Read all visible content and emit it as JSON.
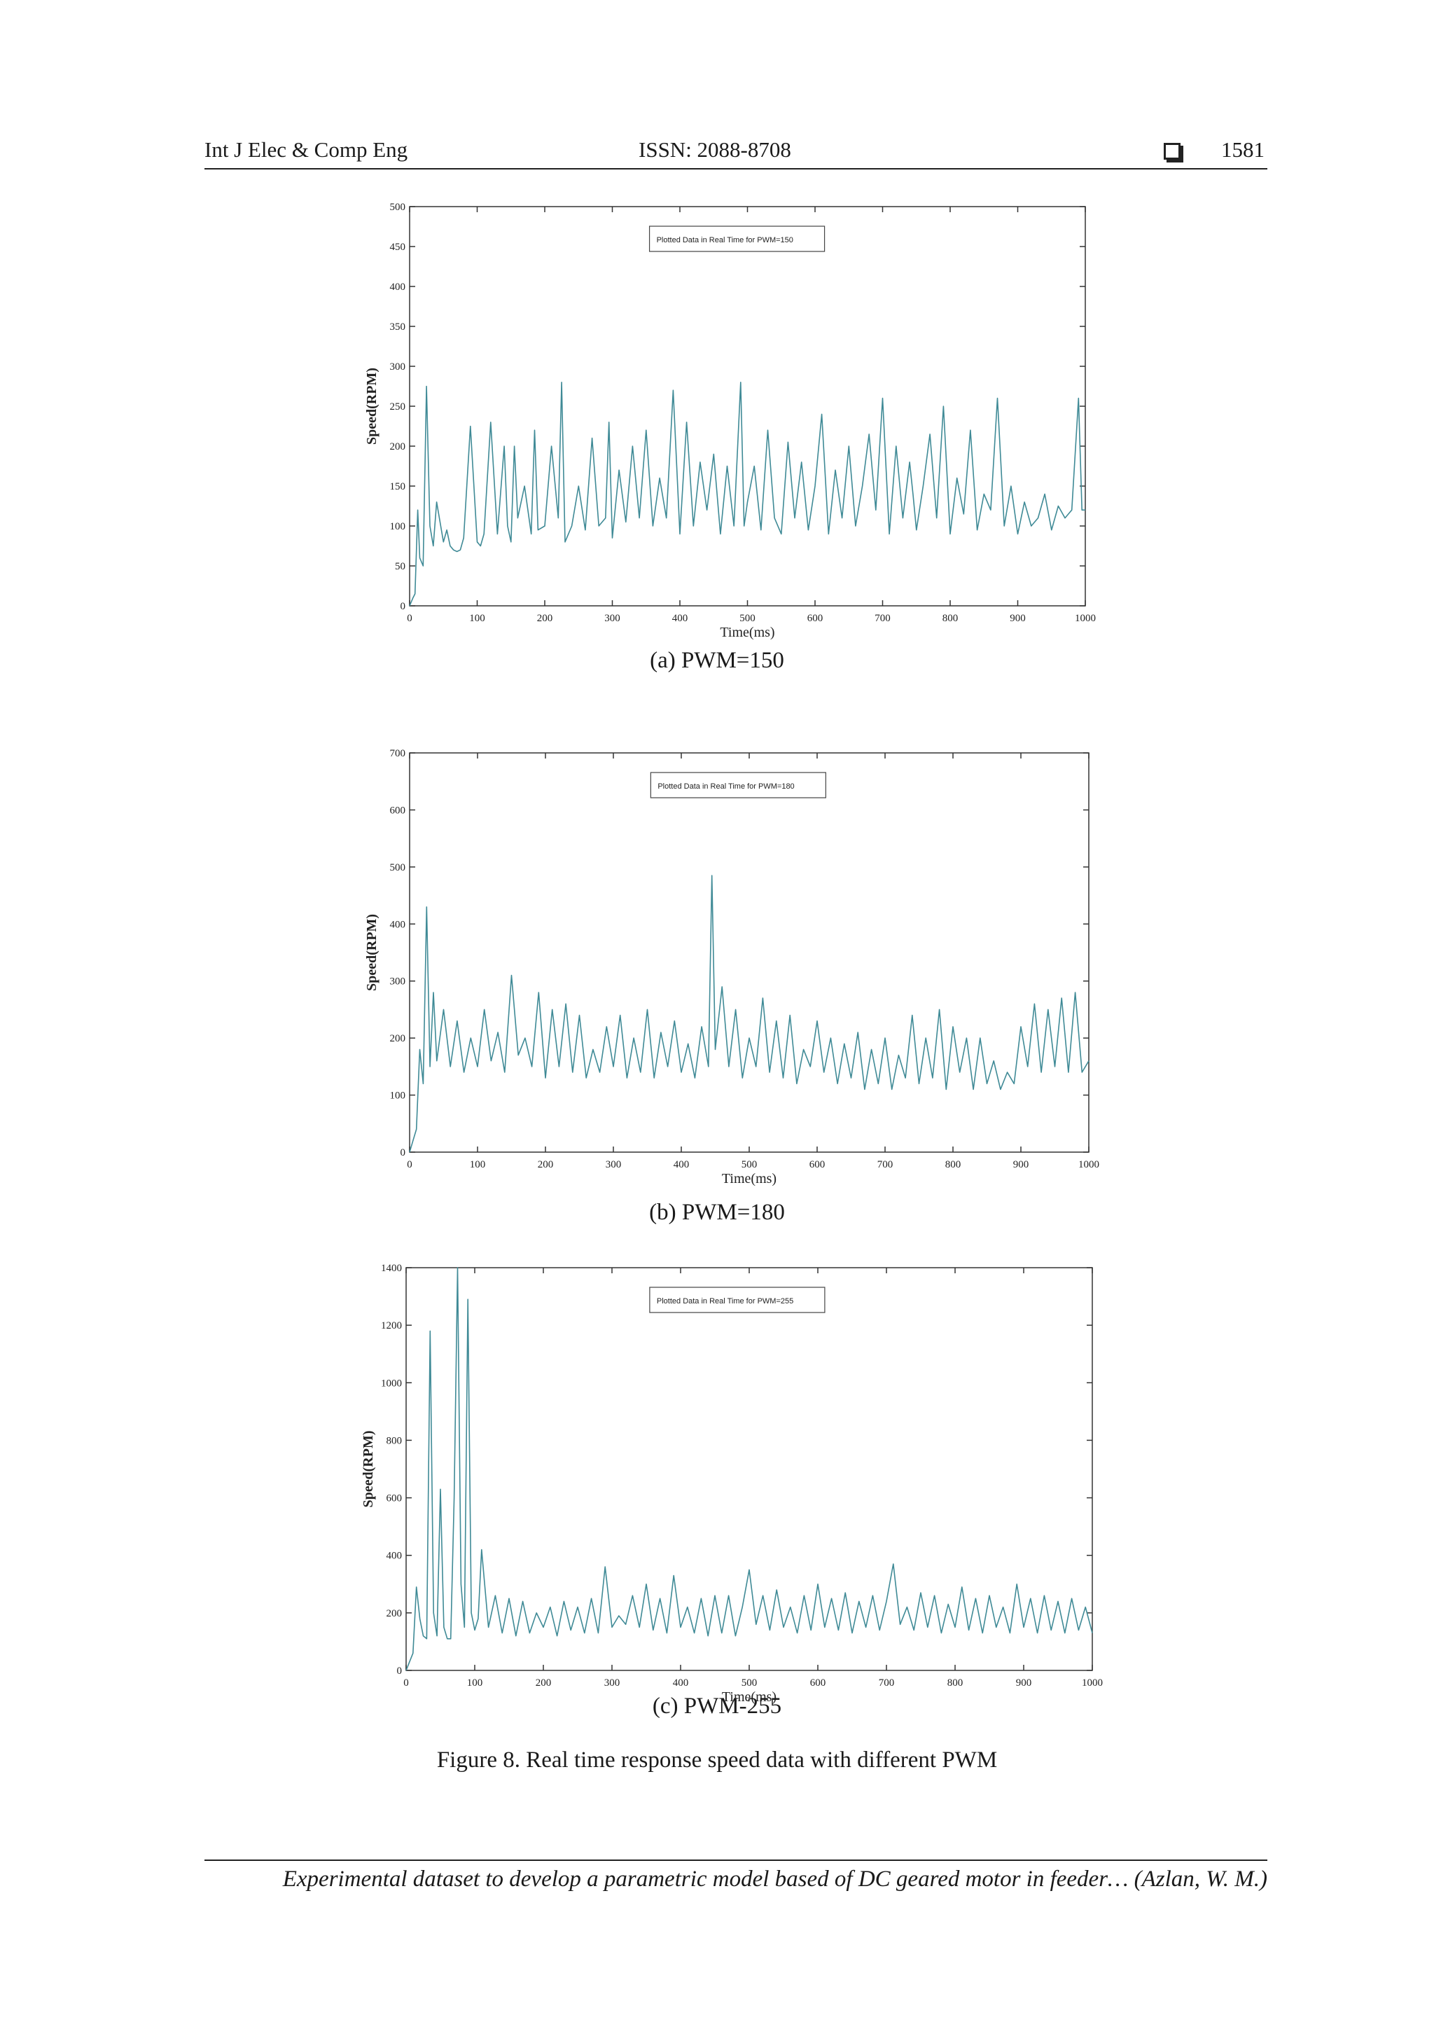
{
  "header": {
    "journal": "Int J Elec & Comp Eng",
    "issn": "ISSN: 2088-8708",
    "page": "1581"
  },
  "charts": [
    {
      "id": "a",
      "caption": "(a) PWM=150",
      "legend": "Plotted Data in Real Time for PWM=150"
    },
    {
      "id": "b",
      "caption": "(b) PWM=180",
      "legend": "Plotted Data in Real Time for PWM=180"
    },
    {
      "id": "c",
      "caption": "(c) PWM-255",
      "legend": "Plotted Data in Real Time for PWM=255"
    }
  ],
  "chart_data": [
    {
      "type": "line",
      "title": "",
      "legend": "Plotted Data in Real Time for PWM=150",
      "xlabel": "Time(ms)",
      "ylabel": "Speed(RPM)",
      "xlim": [
        0,
        1000
      ],
      "ylim": [
        0,
        500
      ],
      "xticks": [
        0,
        100,
        200,
        300,
        400,
        500,
        600,
        700,
        800,
        900,
        1000
      ],
      "yticks": [
        0,
        50,
        100,
        150,
        200,
        250,
        300,
        350,
        400,
        450,
        500
      ],
      "color": "#3f8a96",
      "x": [
        0,
        5,
        8,
        12,
        15,
        20,
        25,
        30,
        35,
        40,
        50,
        55,
        60,
        65,
        70,
        75,
        80,
        90,
        100,
        105,
        110,
        120,
        130,
        140,
        145,
        150,
        155,
        160,
        170,
        180,
        185,
        190,
        200,
        210,
        220,
        225,
        230,
        240,
        250,
        260,
        270,
        280,
        290,
        295,
        300,
        310,
        320,
        330,
        340,
        350,
        360,
        370,
        380,
        390,
        400,
        410,
        420,
        430,
        440,
        450,
        460,
        470,
        480,
        490,
        495,
        500,
        510,
        520,
        530,
        540,
        550,
        560,
        570,
        580,
        590,
        600,
        610,
        620,
        630,
        640,
        650,
        660,
        670,
        680,
        690,
        700,
        710,
        720,
        730,
        740,
        745,
        750,
        760,
        770,
        780,
        790,
        800,
        810,
        820,
        830,
        840,
        850,
        860,
        870,
        880,
        890,
        900,
        910,
        920,
        930,
        940,
        950,
        960,
        970,
        980,
        990,
        995,
        1000
      ],
      "y": [
        0,
        10,
        15,
        120,
        60,
        50,
        275,
        100,
        75,
        130,
        80,
        95,
        75,
        70,
        68,
        70,
        85,
        225,
        80,
        75,
        90,
        230,
        90,
        200,
        100,
        80,
        200,
        110,
        150,
        90,
        220,
        95,
        100,
        200,
        110,
        280,
        80,
        100,
        150,
        95,
        210,
        100,
        110,
        230,
        85,
        170,
        105,
        200,
        110,
        220,
        100,
        160,
        110,
        270,
        90,
        230,
        100,
        180,
        120,
        190,
        90,
        175,
        100,
        280,
        100,
        130,
        175,
        95,
        220,
        110,
        90,
        205,
        110,
        180,
        95,
        150,
        240,
        90,
        170,
        110,
        200,
        100,
        150,
        215,
        120,
        260,
        90,
        200,
        110,
        180,
        140,
        95,
        150,
        215,
        110,
        250,
        90,
        160,
        115,
        220,
        95,
        140,
        120,
        260,
        100,
        150,
        90,
        130,
        100,
        110,
        140,
        95,
        125,
        110,
        120,
        260,
        120,
        120
      ]
    },
    {
      "type": "line",
      "title": "",
      "legend": "Plotted Data in Real Time for PWM=180",
      "xlabel": "Time(ms)",
      "ylabel": "Speed(RPM)",
      "xlim": [
        0,
        1000
      ],
      "ylim": [
        0,
        700
      ],
      "xticks": [
        0,
        100,
        200,
        300,
        400,
        500,
        600,
        700,
        800,
        900,
        1000
      ],
      "yticks": [
        0,
        100,
        200,
        300,
        400,
        500,
        600,
        700
      ],
      "color": "#3f8a96",
      "x": [
        0,
        5,
        10,
        15,
        20,
        25,
        30,
        35,
        40,
        50,
        60,
        70,
        80,
        90,
        100,
        110,
        120,
        130,
        140,
        150,
        160,
        170,
        180,
        190,
        200,
        210,
        220,
        230,
        240,
        250,
        260,
        270,
        280,
        290,
        300,
        310,
        320,
        330,
        340,
        350,
        360,
        370,
        380,
        390,
        400,
        410,
        420,
        430,
        440,
        445,
        450,
        460,
        470,
        480,
        490,
        500,
        510,
        520,
        530,
        540,
        550,
        560,
        570,
        580,
        590,
        600,
        610,
        620,
        630,
        640,
        650,
        660,
        670,
        680,
        690,
        700,
        710,
        720,
        730,
        740,
        750,
        760,
        770,
        780,
        790,
        800,
        810,
        820,
        830,
        840,
        850,
        860,
        870,
        880,
        890,
        900,
        910,
        920,
        930,
        940,
        950,
        960,
        970,
        980,
        990,
        1000
      ],
      "y": [
        0,
        20,
        40,
        180,
        120,
        430,
        150,
        280,
        160,
        250,
        150,
        230,
        140,
        200,
        150,
        250,
        160,
        210,
        140,
        310,
        170,
        200,
        150,
        280,
        130,
        250,
        150,
        260,
        140,
        240,
        130,
        180,
        140,
        220,
        150,
        240,
        130,
        200,
        140,
        250,
        130,
        210,
        150,
        230,
        140,
        190,
        130,
        220,
        150,
        485,
        180,
        290,
        150,
        250,
        130,
        200,
        150,
        270,
        140,
        230,
        130,
        240,
        120,
        180,
        150,
        230,
        140,
        200,
        120,
        190,
        130,
        210,
        110,
        180,
        120,
        200,
        110,
        170,
        130,
        240,
        120,
        200,
        130,
        250,
        110,
        220,
        140,
        200,
        110,
        200,
        120,
        160,
        110,
        140,
        120,
        220,
        150,
        260,
        140,
        250,
        150,
        270,
        140,
        280,
        140,
        160
      ]
    },
    {
      "type": "line",
      "title": "",
      "legend": "Plotted Data in Real Time for PWM=255",
      "xlabel": "Time(ms)",
      "ylabel": "Speed(RPM)",
      "xlim": [
        0,
        1000
      ],
      "ylim": [
        0,
        1400
      ],
      "xticks": [
        0,
        100,
        200,
        300,
        400,
        500,
        600,
        700,
        800,
        900,
        1000
      ],
      "yticks": [
        0,
        200,
        400,
        600,
        800,
        1000,
        1200,
        1400
      ],
      "color": "#3f8a96",
      "x": [
        0,
        5,
        10,
        15,
        20,
        25,
        30,
        35,
        40,
        45,
        50,
        55,
        60,
        65,
        70,
        75,
        80,
        85,
        90,
        95,
        100,
        105,
        110,
        120,
        130,
        140,
        150,
        160,
        170,
        180,
        190,
        200,
        210,
        220,
        230,
        240,
        250,
        260,
        270,
        280,
        290,
        300,
        310,
        320,
        330,
        340,
        350,
        360,
        370,
        380,
        390,
        400,
        410,
        420,
        430,
        440,
        450,
        460,
        470,
        480,
        490,
        500,
        510,
        520,
        530,
        540,
        550,
        560,
        570,
        580,
        590,
        600,
        610,
        620,
        630,
        640,
        650,
        660,
        670,
        680,
        690,
        700,
        710,
        720,
        730,
        740,
        750,
        760,
        770,
        780,
        790,
        800,
        810,
        820,
        830,
        840,
        850,
        860,
        870,
        880,
        890,
        900,
        910,
        920,
        930,
        940,
        950,
        960,
        970,
        980,
        990,
        1000
      ],
      "y": [
        0,
        30,
        60,
        290,
        180,
        120,
        110,
        1180,
        200,
        120,
        630,
        150,
        110,
        110,
        600,
        1400,
        300,
        150,
        1290,
        200,
        140,
        180,
        420,
        150,
        260,
        130,
        250,
        120,
        240,
        130,
        200,
        150,
        220,
        120,
        240,
        140,
        220,
        130,
        250,
        130,
        360,
        150,
        190,
        160,
        260,
        150,
        300,
        140,
        250,
        130,
        330,
        150,
        220,
        130,
        250,
        120,
        260,
        130,
        260,
        120,
        220,
        350,
        160,
        260,
        140,
        280,
        150,
        220,
        130,
        260,
        140,
        300,
        150,
        250,
        140,
        270,
        130,
        240,
        150,
        260,
        140,
        240,
        370,
        160,
        220,
        140,
        270,
        150,
        260,
        130,
        230,
        150,
        290,
        140,
        250,
        130,
        260,
        150,
        220,
        130,
        300,
        150,
        250,
        130,
        260,
        140,
        240,
        130,
        250,
        140,
        220,
        130
      ]
    }
  ],
  "figure_caption": "Figure 8. Real time response speed data with different PWM",
  "footer": "Experimental dataset to develop a parametric model based of DC geared motor in feeder…  (Azlan, W. M.)"
}
